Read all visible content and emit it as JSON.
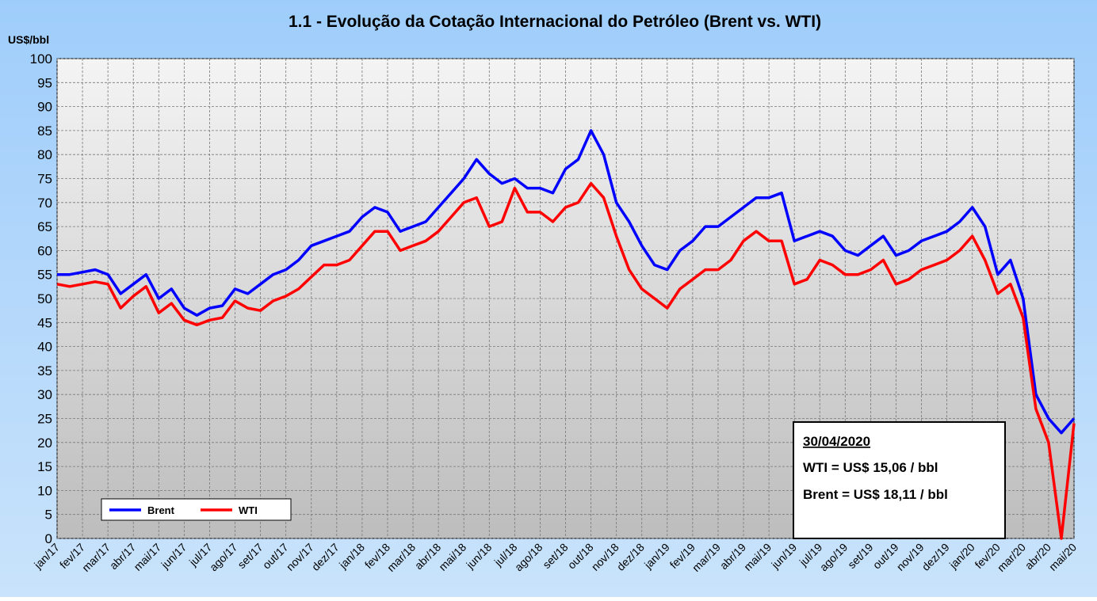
{
  "chart_data": {
    "type": "line",
    "title": "1.1 - Evolução da Cotação Internacional do Petróleo (Brent vs. WTI)",
    "y_label": "US$/bbl",
    "categories": [
      "jan/17",
      null,
      "fev/17",
      null,
      "mar/17",
      null,
      "abr/17",
      null,
      "mai/17",
      null,
      "jun/17",
      null,
      "jul/17",
      null,
      "ago/17",
      null,
      "set/17",
      null,
      "out/17",
      null,
      "nov/17",
      null,
      "dez/17",
      null,
      "jan/18",
      null,
      "fev/18",
      null,
      "mar/18",
      null,
      "abr/18",
      null,
      "mai/18",
      null,
      "jun/18",
      null,
      "jul/18",
      null,
      "ago/18",
      null,
      "set/18",
      null,
      "out/18",
      null,
      "nov/18",
      null,
      "dez/18",
      null,
      "jan/19",
      null,
      "fev/19",
      null,
      "mar/19",
      null,
      "abr/19",
      null,
      "mai/19",
      null,
      "jun/19",
      null,
      "jul/19",
      null,
      "ago/19",
      null,
      "set/19",
      null,
      "out/19",
      null,
      "nov/19",
      null,
      "dez/19",
      null,
      "jan/20",
      null,
      "fev/20",
      null,
      "mar/20",
      null,
      "abr/20",
      null,
      "mai/20"
    ],
    "series": [
      {
        "name": "Brent",
        "color": "#0000ff",
        "values": [
          55,
          55,
          55.5,
          56,
          55,
          51,
          53,
          55,
          50,
          52,
          48,
          46.5,
          48,
          48.5,
          52,
          51,
          53,
          55,
          56,
          58,
          61,
          62,
          63,
          64,
          67,
          69,
          68,
          64,
          65,
          66,
          69,
          72,
          75,
          79,
          76,
          74,
          75,
          73,
          73,
          72,
          77,
          79,
          85,
          80,
          70,
          66,
          61,
          57,
          56,
          60,
          62,
          65,
          65,
          67,
          69,
          71,
          71,
          72,
          62,
          63,
          64,
          63,
          60,
          59,
          61,
          63,
          59,
          60,
          62,
          63,
          64,
          66,
          69,
          65,
          55,
          58,
          50,
          30,
          25,
          22,
          25
        ]
      },
      {
        "name": "WTI",
        "color": "#ff0000",
        "values": [
          53,
          52.5,
          53,
          53.5,
          53,
          48,
          50.5,
          52.5,
          47,
          49,
          45.5,
          44.5,
          45.5,
          46,
          49.5,
          48,
          47.5,
          49.5,
          50.5,
          52,
          54.5,
          57,
          57,
          58,
          61,
          64,
          64,
          60,
          61,
          62,
          64,
          67,
          70,
          71,
          65,
          66,
          73,
          68,
          68,
          66,
          69,
          70,
          74,
          71,
          63,
          56,
          52,
          50,
          48,
          52,
          54,
          56,
          56,
          58,
          62,
          64,
          62,
          62,
          53,
          54,
          58,
          57,
          55,
          55,
          56,
          58,
          53,
          54,
          56,
          57,
          58,
          60,
          63,
          58,
          51,
          53,
          46,
          27,
          20,
          0,
          24
        ]
      }
    ],
    "ylim": [
      0,
      100
    ],
    "yticks": [
      0,
      5,
      10,
      15,
      20,
      25,
      30,
      35,
      40,
      45,
      50,
      55,
      60,
      65,
      70,
      75,
      80,
      85,
      90,
      95,
      100
    ],
    "grid": true,
    "legend": "lower left",
    "annotation": {
      "date": "30/04/2020",
      "lines": [
        "WTI = US$ 15,06 / bbl",
        "Brent = US$ 18,11 / bbl"
      ]
    }
  }
}
